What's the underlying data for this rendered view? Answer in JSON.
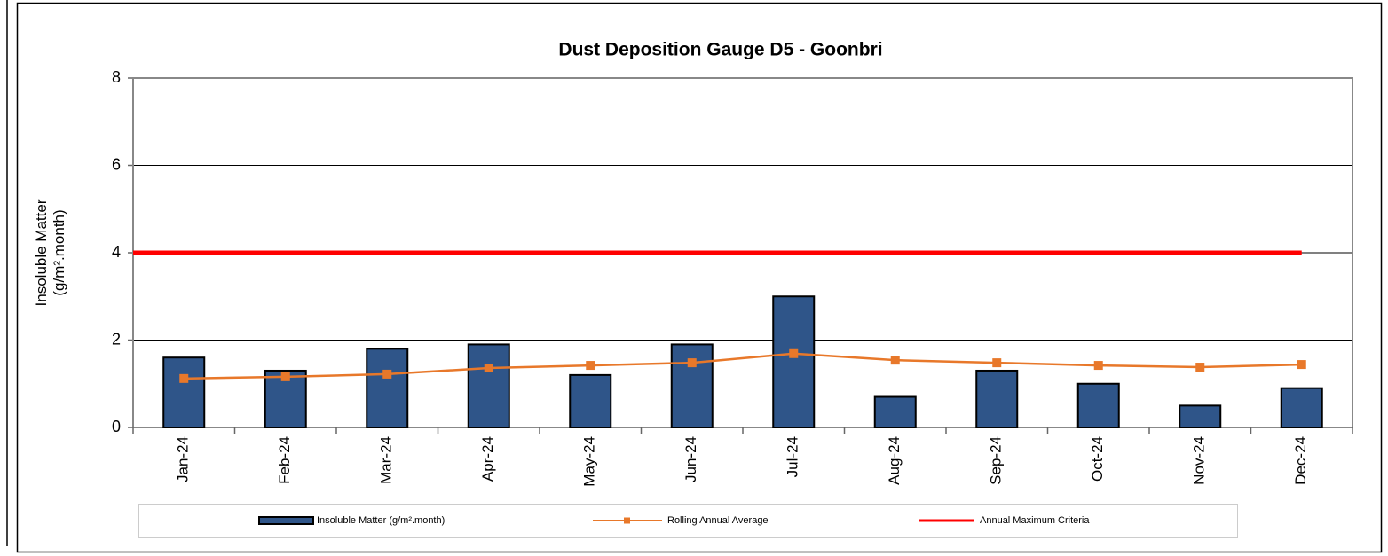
{
  "chart_data": {
    "type": "bar_line",
    "title": "Dust Deposition Gauge D5 - Goonbri",
    "y_label": [
      "Insoluble Matter",
      "(g/m².month)"
    ],
    "categories": [
      "Jan-24",
      "Feb-24",
      "Mar-24",
      "Apr-24",
      "May-24",
      "Jun-24",
      "Jul-24",
      "Aug-24",
      "Sep-24",
      "Oct-24",
      "Nov-24",
      "Dec-24"
    ],
    "series": [
      {
        "name": "Insoluble Matter (g/m².month)",
        "kind": "bar",
        "color": "#2f5589",
        "values": [
          1.6,
          1.3,
          1.8,
          1.9,
          1.2,
          1.9,
          3.0,
          0.7,
          1.3,
          1.0,
          0.5,
          0.9
        ]
      },
      {
        "name": "Rolling Annual Average",
        "kind": "line",
        "marker": true,
        "color": "#e8782a",
        "values": [
          1.12,
          1.16,
          1.22,
          1.36,
          1.42,
          1.48,
          1.69,
          1.54,
          1.48,
          1.42,
          1.38,
          1.44
        ]
      },
      {
        "name": "Annual Maximum Criteria",
        "kind": "line",
        "marker": false,
        "color": "#ff0000",
        "values": [
          4,
          4,
          4,
          4,
          4,
          4,
          4,
          4,
          4,
          4,
          4,
          4
        ]
      }
    ],
    "ylim": [
      0,
      8
    ],
    "yticks": [
      0,
      2,
      4,
      6,
      8
    ],
    "grid": true
  }
}
